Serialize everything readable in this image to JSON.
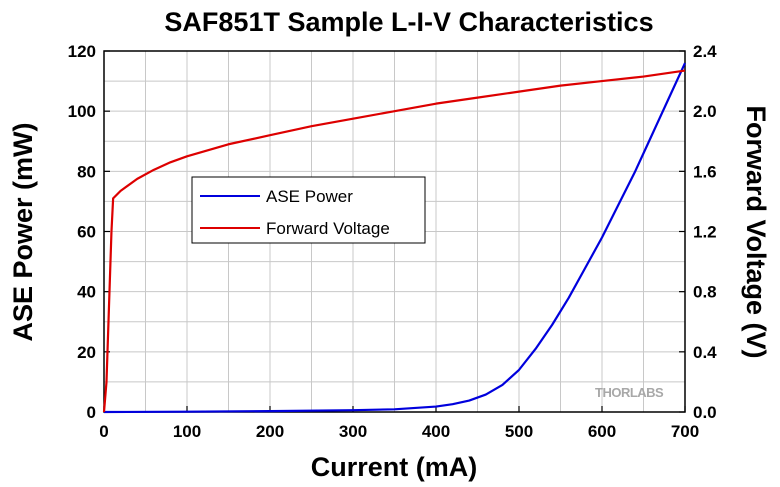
{
  "watermark": "THORLABS",
  "chart_data": {
    "type": "line",
    "title": "SAF851T Sample L-I-V Characteristics",
    "xlabel": "Current (mA)",
    "ylabel": "ASE Power (mW)",
    "y2label": "Forward Voltage (V)",
    "xlim": [
      0,
      700
    ],
    "ylim": [
      0,
      120
    ],
    "y2lim": [
      0,
      2.4
    ],
    "xticks": [
      "0",
      "100",
      "200",
      "300",
      "400",
      "500",
      "600",
      "700"
    ],
    "yticks": [
      "0",
      "20",
      "40",
      "60",
      "80",
      "100",
      "120"
    ],
    "y2ticks": [
      "0.0",
      "0.4",
      "0.8",
      "1.2",
      "1.6",
      "2.0",
      "2.4"
    ],
    "grid": true,
    "legend_position": "center-left",
    "series": [
      {
        "name": "ASE Power",
        "axis": "left",
        "color": "#0000dd",
        "x": [
          0,
          100,
          200,
          300,
          350,
          400,
          420,
          440,
          460,
          480,
          500,
          520,
          540,
          560,
          580,
          600,
          620,
          640,
          660,
          680,
          700
        ],
        "y": [
          0,
          0.1,
          0.3,
          0.6,
          0.9,
          1.8,
          2.6,
          3.8,
          5.8,
          9,
          14,
          21,
          29,
          38,
          48,
          58,
          69,
          80,
          92,
          104,
          116
        ]
      },
      {
        "name": "Forward Voltage",
        "axis": "right",
        "color": "#dd0000",
        "x": [
          0,
          3,
          6,
          9,
          11,
          20,
          40,
          60,
          80,
          100,
          150,
          200,
          250,
          300,
          350,
          400,
          450,
          500,
          550,
          600,
          650,
          700
        ],
        "y": [
          0.0,
          0.2,
          0.7,
          1.2,
          1.42,
          1.47,
          1.55,
          1.61,
          1.66,
          1.7,
          1.78,
          1.84,
          1.9,
          1.95,
          2.0,
          2.05,
          2.09,
          2.13,
          2.17,
          2.2,
          2.23,
          2.27
        ]
      }
    ]
  }
}
